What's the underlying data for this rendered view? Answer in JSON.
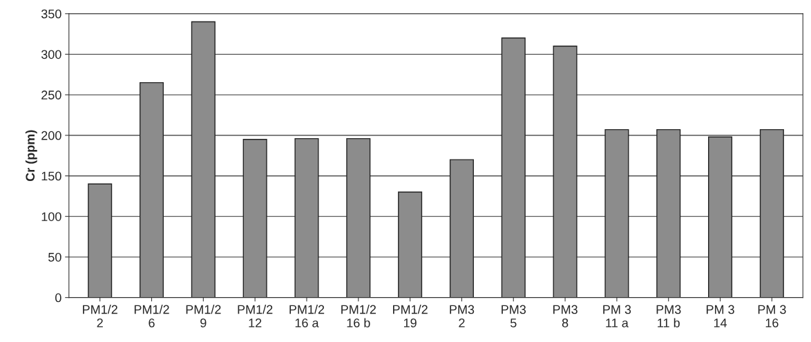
{
  "chart_data": {
    "type": "bar",
    "ylabel": "Cr (ppm)",
    "categories": [
      "PM1/2\n2",
      "PM1/2\n6",
      "PM1/2\n9",
      "PM1/2\n12",
      "PM1/2\n16 a",
      "PM1/2\n16 b",
      "PM1/2\n19",
      "PM3\n2",
      "PM3\n5",
      "PM3\n8",
      "PM 3\n11 a",
      "PM3\n11 b",
      "PM 3\n14",
      "PM 3\n16"
    ],
    "values": [
      140,
      265,
      340,
      195,
      196,
      196,
      130,
      170,
      320,
      310,
      207,
      207,
      198,
      207
    ],
    "color": "#8c8c8c",
    "ylim": [
      0,
      350
    ],
    "yticks": [
      0,
      50,
      100,
      150,
      200,
      250,
      300,
      350
    ],
    "grid": "y",
    "legend": false
  }
}
